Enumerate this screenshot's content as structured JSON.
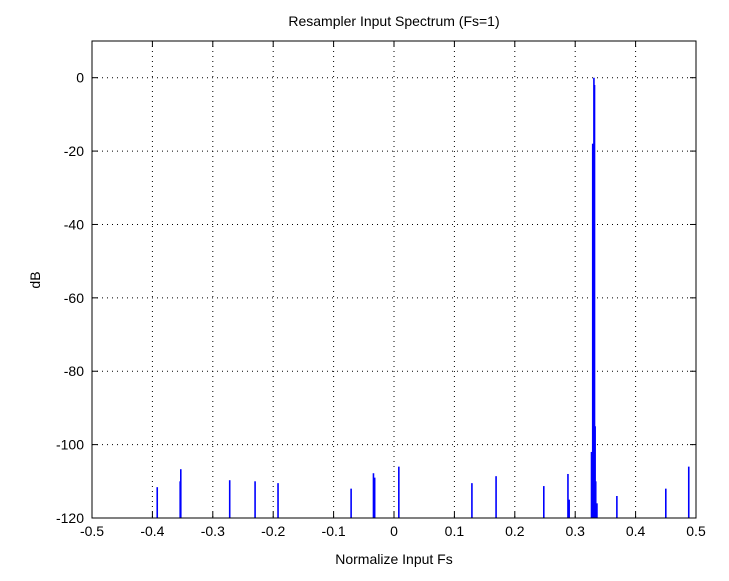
{
  "chart_data": {
    "type": "line",
    "title": "Resampler Input Spectrum (Fs=1)",
    "xlabel": "Normalize Input Fs",
    "ylabel": "dB",
    "xlim": [
      -0.5,
      0.5
    ],
    "ylim": [
      -120,
      10
    ],
    "grid": true,
    "xticks": [
      -0.5,
      -0.4,
      -0.3,
      -0.2,
      -0.1,
      0,
      0.1,
      0.2,
      0.3,
      0.4,
      0.5
    ],
    "xtick_labels": [
      "-0.5",
      "-0.4",
      "-0.3",
      "-0.2",
      "-0.1",
      "0",
      "0.1",
      "0.2",
      "0.3",
      "0.4",
      "0.5"
    ],
    "yticks": [
      0,
      -20,
      -40,
      -60,
      -80,
      -100,
      -120
    ],
    "ytick_labels": [
      "0",
      "-20",
      "-40",
      "-60",
      "-80",
      "-100",
      "-120"
    ],
    "series": [
      {
        "name": "spectrum",
        "color": "#0000ff",
        "stems": [
          [
            -0.392,
            -111.6
          ],
          [
            -0.353,
            -106.7
          ],
          [
            -0.354,
            -110
          ],
          [
            -0.272,
            -109.7
          ],
          [
            -0.23,
            -110
          ],
          [
            -0.192,
            -110.5
          ],
          [
            -0.071,
            -112
          ],
          [
            -0.034,
            -107.8
          ],
          [
            -0.032,
            -109
          ],
          [
            0.008,
            -106
          ],
          [
            0.129,
            -110.5
          ],
          [
            0.169,
            -108.6
          ],
          [
            0.248,
            -111.3
          ],
          [
            0.288,
            -108
          ],
          [
            0.29,
            -115
          ],
          [
            0.327,
            -102
          ],
          [
            0.329,
            -18
          ],
          [
            0.33,
            -18
          ],
          [
            0.331,
            0
          ],
          [
            0.332,
            -2
          ],
          [
            0.333,
            -95
          ],
          [
            0.334,
            -110
          ],
          [
            0.336,
            -116
          ],
          [
            0.369,
            -114
          ],
          [
            0.45,
            -112
          ],
          [
            0.488,
            -106
          ]
        ]
      }
    ]
  }
}
